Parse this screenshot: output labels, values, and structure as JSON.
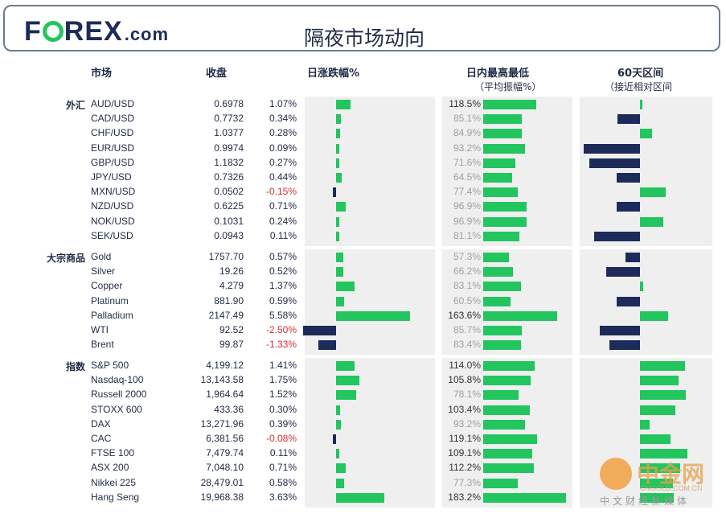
{
  "logo": {
    "brand": "FOREX",
    "suffix": ".com"
  },
  "title": "隔夜市场动向",
  "columns": {
    "market": "市场",
    "close": "收盘",
    "daily_change": "日涨跌幅%",
    "intraday_range": "日内最高最低",
    "intraday_range_sub": "（平均振幅%）",
    "range60": "60天区间",
    "range60_sub": "（接近相对区间"
  },
  "sections": [
    {
      "label": "外汇",
      "rows": [
        {
          "market": "AUD/USD",
          "close": "0.6978",
          "change": "1.07%",
          "change_value": 1.07,
          "range": "118.5%",
          "range_value": 118.5,
          "pos60": 0.02
        },
        {
          "market": "CAD/USD",
          "close": "0.7732",
          "change": "0.34%",
          "change_value": 0.34,
          "range": "85.1%",
          "range_value": 85.1,
          "pos60": -0.4
        },
        {
          "market": "CHF/USD",
          "close": "1.0377",
          "change": "0.28%",
          "change_value": 0.28,
          "range": "84.9%",
          "range_value": 84.9,
          "pos60": 0.22
        },
        {
          "market": "EUR/USD",
          "close": "0.9974",
          "change": "0.09%",
          "change_value": 0.09,
          "range": "93.2%",
          "range_value": 93.2,
          "pos60": -1.0
        },
        {
          "market": "GBP/USD",
          "close": "1.1832",
          "change": "0.27%",
          "change_value": 0.27,
          "range": "71.6%",
          "range_value": 71.6,
          "pos60": -0.9
        },
        {
          "market": "JPY/USD",
          "close": "0.7326",
          "change": "0.44%",
          "change_value": 0.44,
          "range": "64.5%",
          "range_value": 64.5,
          "pos60": -0.42
        },
        {
          "market": "MXN/USD",
          "close": "0.0502",
          "change": "-0.15%",
          "change_value": -0.15,
          "range": "77.4%",
          "range_value": 77.4,
          "pos60": 0.45
        },
        {
          "market": "NZD/USD",
          "close": "0.6225",
          "change": "0.71%",
          "change_value": 0.71,
          "range": "96.9%",
          "range_value": 96.9,
          "pos60": -0.42
        },
        {
          "market": "NOK/USD",
          "close": "0.1031",
          "change": "0.24%",
          "change_value": 0.24,
          "range": "96.9%",
          "range_value": 96.9,
          "pos60": 0.42
        },
        {
          "market": "SEK/USD",
          "close": "0.0943",
          "change": "0.11%",
          "change_value": 0.11,
          "range": "81.1%",
          "range_value": 81.1,
          "pos60": -0.82
        }
      ]
    },
    {
      "label": "大宗商品",
      "rows": [
        {
          "market": "Gold",
          "close": "1757.70",
          "change": "0.57%",
          "change_value": 0.57,
          "range": "57.3%",
          "range_value": 57.3,
          "pos60": -0.26
        },
        {
          "market": "Silver",
          "close": "19.26",
          "change": "0.52%",
          "change_value": 0.52,
          "range": "66.2%",
          "range_value": 66.2,
          "pos60": -0.6
        },
        {
          "market": "Copper",
          "close": "4.279",
          "change": "1.37%",
          "change_value": 1.37,
          "range": "83.1%",
          "range_value": 83.1,
          "pos60": 0.06
        },
        {
          "market": "Platinum",
          "close": "881.90",
          "change": "0.59%",
          "change_value": 0.59,
          "range": "60.5%",
          "range_value": 60.5,
          "pos60": -0.42
        },
        {
          "market": "Palladium",
          "close": "2147.49",
          "change": "5.58%",
          "change_value": 5.58,
          "range": "163.6%",
          "range_value": 163.6,
          "pos60": 0.5
        },
        {
          "market": "WTI",
          "close": "92.52",
          "change": "-2.50%",
          "change_value": -2.5,
          "range": "85.7%",
          "range_value": 85.7,
          "pos60": -0.72
        },
        {
          "market": "Brent",
          "close": "99.87",
          "change": "-1.33%",
          "change_value": -1.33,
          "range": "83.4%",
          "range_value": 83.4,
          "pos60": -0.55
        }
      ]
    },
    {
      "label": "指数",
      "rows": [
        {
          "market": "S&P 500",
          "close": "4,199.12",
          "change": "1.41%",
          "change_value": 1.41,
          "range": "114.0%",
          "range_value": 114.0,
          "pos60": 0.8
        },
        {
          "market": "Nasdaq-100",
          "close": "13,143.58",
          "change": "1.75%",
          "change_value": 1.75,
          "range": "105.8%",
          "range_value": 105.8,
          "pos60": 0.68
        },
        {
          "market": "Russell 2000",
          "close": "1,964.64",
          "change": "1.52%",
          "change_value": 1.52,
          "range": "78.1%",
          "range_value": 78.1,
          "pos60": 0.82
        },
        {
          "market": "STOXX 600",
          "close": "433.36",
          "change": "0.30%",
          "change_value": 0.3,
          "range": "103.4%",
          "range_value": 103.4,
          "pos60": 0.63
        },
        {
          "market": "DAX",
          "close": "13,271.96",
          "change": "0.39%",
          "change_value": 0.39,
          "range": "93.2%",
          "range_value": 93.2,
          "pos60": 0.17
        },
        {
          "market": "CAC",
          "close": "6,381.56",
          "change": "-0.08%",
          "change_value": -0.08,
          "range": "119.1%",
          "range_value": 119.1,
          "pos60": 0.54
        },
        {
          "market": "FTSE 100",
          "close": "7,479.74",
          "change": "0.11%",
          "change_value": 0.11,
          "range": "109.1%",
          "range_value": 109.1,
          "pos60": 0.84
        },
        {
          "market": "ASX 200",
          "close": "7,048.10",
          "change": "0.71%",
          "change_value": 0.71,
          "range": "112.2%",
          "range_value": 112.2,
          "pos60": 0.72
        },
        {
          "market": "Nikkei 225",
          "close": "28,479.01",
          "change": "0.58%",
          "change_value": 0.58,
          "range": "77.3%",
          "range_value": 77.3,
          "pos60": 0.58
        },
        {
          "market": "Hang Seng",
          "close": "19,968.38",
          "change": "3.63%",
          "change_value": 3.63,
          "range": "183.2%",
          "range_value": 183.2,
          "pos60": 0.6
        }
      ]
    }
  ],
  "colors": {
    "positive": "#22c55e",
    "negative": "#1c2b5a",
    "neg_text": "#d32f2f"
  },
  "watermark": {
    "brand": "中金网",
    "url": "CNGOLD.COM.CN",
    "tagline": "中文财经新媒体"
  }
}
